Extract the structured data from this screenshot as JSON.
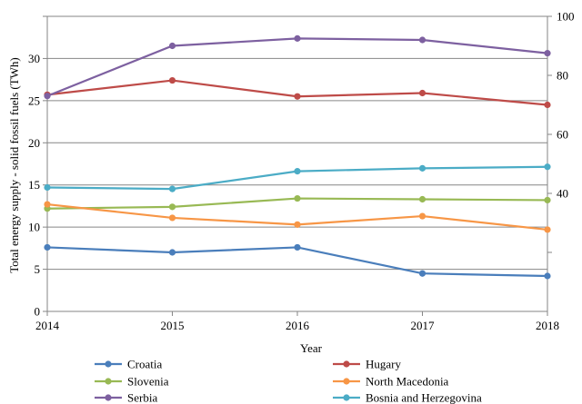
{
  "chart_data": {
    "type": "line",
    "x": [
      2014,
      2015,
      2016,
      2017,
      2018
    ],
    "x_ticks": [
      "2014",
      "2015",
      "2016",
      "2017",
      "2018"
    ],
    "xlabel": "Year",
    "ylabel": "Total energy supply - solid fossil fuels (TWh)",
    "left_axis": {
      "ylim": [
        0,
        35
      ],
      "ticks": [
        "0",
        "5",
        "10",
        "15",
        "20",
        "25",
        "30"
      ]
    },
    "right_axis": {
      "ylim": [
        0,
        100
      ],
      "ticks": [
        "40",
        "60",
        "80",
        "100"
      ]
    },
    "grid": "horizontal",
    "legend_position": "bottom",
    "series": [
      {
        "name": "Croatia",
        "axis": "left",
        "color": "#4a7ebb",
        "values": [
          7.6,
          7.0,
          7.6,
          4.5,
          4.2
        ]
      },
      {
        "name": "Hugary",
        "axis": "left",
        "color": "#be4b48",
        "values": [
          25.7,
          27.4,
          25.5,
          25.9,
          24.5
        ]
      },
      {
        "name": "Slovenia",
        "axis": "left",
        "color": "#98b954",
        "values": [
          12.2,
          12.4,
          13.4,
          13.3,
          13.2
        ]
      },
      {
        "name": "North Macedonia",
        "axis": "left",
        "color": "#f79646",
        "values": [
          12.7,
          11.1,
          10.3,
          11.3,
          9.7
        ]
      },
      {
        "name": "Serbia",
        "axis": "right",
        "color": "#7d60a0",
        "values": [
          73,
          90,
          92.5,
          92,
          87.5
        ]
      },
      {
        "name": "Bosnia and Herzegovina",
        "axis": "right",
        "color": "#4bacc6",
        "values": [
          42,
          41.5,
          47.5,
          48.5,
          49
        ]
      }
    ]
  }
}
